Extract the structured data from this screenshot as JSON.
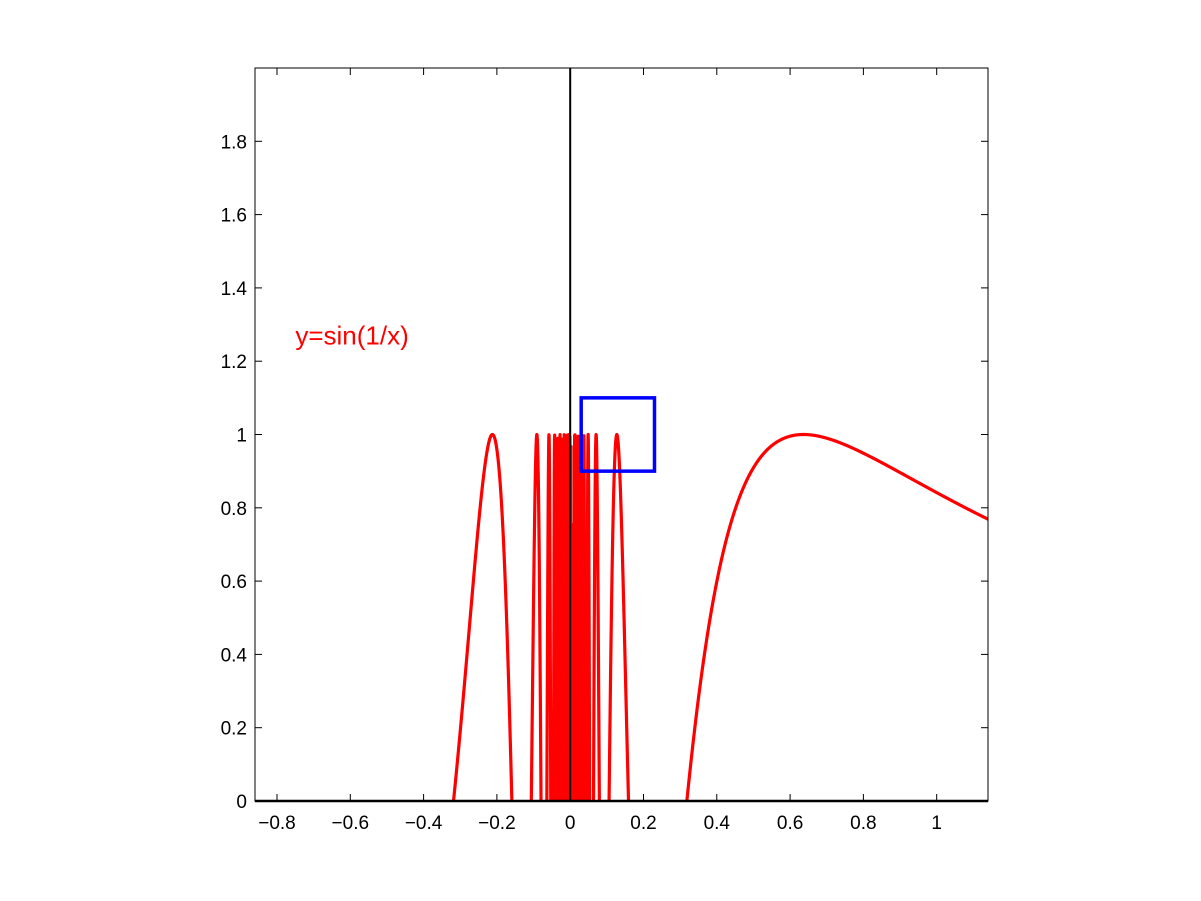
{
  "colors": {
    "background": "#ffffff",
    "axes": "#000000",
    "curve": "#ff0000",
    "highlight_box": "#0000ff",
    "annotation": "#ff0000"
  },
  "chart_data": {
    "type": "line",
    "title": "",
    "xlabel": "",
    "ylabel": "",
    "xlim": [
      -0.86,
      1.14
    ],
    "ylim": [
      0,
      2
    ],
    "grid": false,
    "legend": "none",
    "x_ticks": [
      -0.8,
      -0.6,
      -0.4,
      -0.2,
      0,
      0.2,
      0.4,
      0.6,
      0.8,
      1
    ],
    "x_tick_labels": [
      "−0.8",
      "−0.6",
      "−0.4",
      "−0.2",
      "0",
      "0.2",
      "0.4",
      "0.6",
      "0.8",
      "1"
    ],
    "y_ticks": [
      0,
      0.2,
      0.4,
      0.6,
      0.8,
      1,
      1.2,
      1.4,
      1.6,
      1.8
    ],
    "y_tick_labels": [
      "0",
      "0.2",
      "0.4",
      "0.6",
      "0.8",
      "1",
      "1.2",
      "1.4",
      "1.6",
      "1.8"
    ],
    "annotation": {
      "text": "y=sin(1/x)",
      "x": -0.75,
      "y": 1.27
    },
    "series": [
      {
        "function": "sin(1/x)",
        "x_range": [
          -0.86,
          1.14
        ],
        "clipped_to_ylim": true
      }
    ],
    "vertical_line": {
      "x": 0
    },
    "highlight_box": {
      "x": [
        0.03,
        0.23
      ],
      "y": [
        0.9,
        1.1
      ]
    }
  }
}
